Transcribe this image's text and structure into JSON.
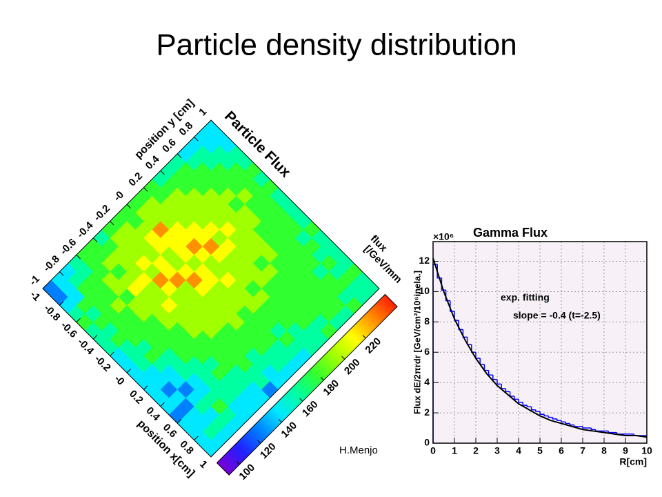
{
  "title": "Particle density distribution",
  "author": "H.Menjo",
  "chart_data": [
    {
      "type": "heatmap",
      "title": "Particle Flux",
      "xlabel": "position x[cm]",
      "ylabel": "position y [cm]",
      "zlabel": [
        "flux",
        "[/GeV/mm"
      ],
      "xlim": [
        -1,
        1
      ],
      "ylim": [
        -1,
        1
      ],
      "xticks": [
        -1,
        -0.8,
        -0.6,
        -0.4,
        -0.2,
        {
          "value": 0,
          "label": "-0"
        },
        0.2,
        0.4,
        0.6,
        0.8,
        1
      ],
      "yticks": [
        -1,
        -0.8,
        -0.6,
        -0.4,
        -0.2,
        {
          "value": 0,
          "label": "-0"
        },
        0.2,
        0.4,
        0.6,
        0.8,
        1
      ],
      "zlim": [
        90,
        250
      ],
      "zticks": [
        100,
        120,
        140,
        160,
        180,
        200,
        220
      ],
      "palette": [
        "#7a00d8",
        "#2020ff",
        "#0080ff",
        "#00e8ff",
        "#00ffa0",
        "#30ff30",
        "#a0ff00",
        "#ffff00",
        "#ff9000",
        "#ff2000"
      ],
      "z": [
        [
          130,
          125,
          150,
          160,
          170,
          165,
          155,
          160,
          150,
          145,
          140,
          150,
          135,
          140,
          150,
          130,
          135,
          145,
          150,
          140
        ],
        [
          140,
          150,
          135,
          170,
          165,
          175,
          160,
          170,
          165,
          155,
          160,
          150,
          145,
          130,
          140,
          125,
          150,
          140,
          155,
          150
        ],
        [
          150,
          165,
          175,
          170,
          180,
          175,
          185,
          170,
          175,
          165,
          170,
          160,
          150,
          140,
          130,
          145,
          155,
          150,
          160,
          145
        ],
        [
          165,
          160,
          180,
          185,
          175,
          190,
          180,
          185,
          170,
          180,
          175,
          165,
          160,
          155,
          140,
          150,
          160,
          170,
          155,
          150
        ],
        [
          170,
          185,
          175,
          190,
          195,
          185,
          200,
          190,
          185,
          180,
          185,
          175,
          170,
          165,
          160,
          155,
          165,
          160,
          150,
          140
        ],
        [
          175,
          180,
          190,
          185,
          200,
          210,
          195,
          205,
          190,
          195,
          185,
          180,
          175,
          170,
          165,
          175,
          160,
          165,
          145,
          135
        ],
        [
          160,
          185,
          195,
          200,
          190,
          215,
          205,
          200,
          210,
          195,
          190,
          200,
          185,
          180,
          175,
          170,
          165,
          160,
          150,
          140
        ],
        [
          180,
          190,
          200,
          195,
          210,
          200,
          225,
          215,
          205,
          200,
          195,
          190,
          195,
          185,
          180,
          175,
          170,
          165,
          155,
          130
        ],
        [
          175,
          195,
          190,
          205,
          200,
          220,
          210,
          230,
          200,
          205,
          200,
          195,
          190,
          185,
          175,
          180,
          165,
          160,
          150,
          135
        ],
        [
          170,
          185,
          205,
          210,
          215,
          205,
          200,
          215,
          225,
          210,
          205,
          200,
          195,
          190,
          185,
          175,
          170,
          160,
          155,
          145
        ],
        [
          180,
          190,
          200,
          230,
          210,
          220,
          215,
          205,
          210,
          220,
          200,
          195,
          205,
          185,
          180,
          170,
          175,
          165,
          160,
          150
        ],
        [
          175,
          195,
          190,
          205,
          215,
          210,
          225,
          210,
          200,
          205,
          210,
          195,
          190,
          195,
          180,
          175,
          165,
          170,
          155,
          150
        ],
        [
          170,
          185,
          200,
          195,
          205,
          215,
          220,
          230,
          210,
          200,
          195,
          200,
          185,
          190,
          175,
          170,
          180,
          165,
          160,
          155
        ],
        [
          165,
          180,
          190,
          200,
          195,
          205,
          210,
          200,
          215,
          205,
          200,
          190,
          195,
          180,
          185,
          175,
          170,
          175,
          165,
          160
        ],
        [
          160,
          175,
          185,
          190,
          200,
          195,
          205,
          210,
          200,
          195,
          205,
          185,
          190,
          185,
          180,
          170,
          175,
          170,
          165,
          170
        ],
        [
          155,
          170,
          180,
          185,
          190,
          200,
          195,
          200,
          205,
          190,
          195,
          190,
          180,
          185,
          175,
          180,
          170,
          175,
          170,
          165
        ],
        [
          150,
          165,
          170,
          180,
          185,
          190,
          185,
          195,
          190,
          185,
          180,
          185,
          175,
          180,
          170,
          175,
          180,
          170,
          175,
          160
        ],
        [
          145,
          160,
          165,
          175,
          180,
          185,
          190,
          180,
          185,
          180,
          175,
          170,
          180,
          175,
          170,
          165,
          175,
          170,
          165,
          170
        ],
        [
          140,
          150,
          160,
          165,
          170,
          175,
          180,
          175,
          170,
          175,
          170,
          175,
          165,
          170,
          160,
          170,
          165,
          175,
          160,
          165
        ],
        [
          135,
          145,
          150,
          160,
          165,
          170,
          165,
          170,
          165,
          160,
          165,
          160,
          170,
          160,
          165,
          155,
          160,
          170,
          165,
          160
        ]
      ]
    },
    {
      "type": "histogram",
      "title": "Gamma Flux",
      "xlabel": "R[cm]",
      "ylabel": "Flux dE/2πrdr [GeV/cm²/10⁶inela.]",
      "y_multiplier": "×10⁶",
      "xlim": [
        0,
        10
      ],
      "ylim": [
        0,
        13.3
      ],
      "xticks": [
        0,
        1,
        2,
        3,
        4,
        5,
        6,
        7,
        8,
        9,
        10
      ],
      "yticks": [
        0,
        2,
        4,
        6,
        8,
        10,
        12
      ],
      "grid": true,
      "color": "#0000ff",
      "bins": [
        0,
        0.2,
        0.4,
        0.6,
        0.8,
        1,
        1.2,
        1.4,
        1.6,
        1.8,
        2,
        2.2,
        2.4,
        2.6,
        2.8,
        3,
        3.2,
        3.4,
        3.6,
        3.8,
        4,
        4.2,
        4.4,
        4.6,
        4.8,
        5,
        5.2,
        5.4,
        5.6,
        5.8,
        6,
        6.2,
        6.4,
        6.6,
        6.8,
        7,
        7.2,
        7.4,
        7.6,
        7.8,
        8,
        8.2,
        8.4,
        8.6,
        8.8,
        9,
        9.2,
        9.4,
        9.6,
        9.8,
        10
      ],
      "counts": [
        11.8,
        10.9,
        10.1,
        9.4,
        8.7,
        8.1,
        7.5,
        7.0,
        6.5,
        6.0,
        5.6,
        5.2,
        4.8,
        4.5,
        4.2,
        3.9,
        3.6,
        3.4,
        3.1,
        2.9,
        2.7,
        2.5,
        2.4,
        2.2,
        2.1,
        1.9,
        1.8,
        1.7,
        1.6,
        1.5,
        1.4,
        1.3,
        1.2,
        1.1,
        1.1,
        1.0,
        1.0,
        0.9,
        0.8,
        0.8,
        0.8,
        0.7,
        0.7,
        0.6,
        0.6,
        0.6,
        0.6,
        0.5,
        0.5,
        0.5
      ],
      "fit": {
        "color": "#000000",
        "x": [
          0,
          0.5,
          1,
          1.5,
          2,
          2.5,
          3,
          3.5,
          4,
          4.5,
          5,
          5.5,
          6,
          6.5,
          7,
          7.5,
          8,
          8.5,
          9,
          9.5,
          10
        ],
        "y": [
          12.2,
          10.0,
          8.2,
          6.8,
          5.6,
          4.6,
          3.8,
          3.2,
          2.6,
          2.2,
          1.8,
          1.5,
          1.3,
          1.1,
          0.9,
          0.8,
          0.7,
          0.6,
          0.5,
          0.5,
          0.4
        ]
      },
      "annotations": [
        "exp. fitting",
        "slope = -0.4 (t=-2.5)"
      ]
    }
  ]
}
